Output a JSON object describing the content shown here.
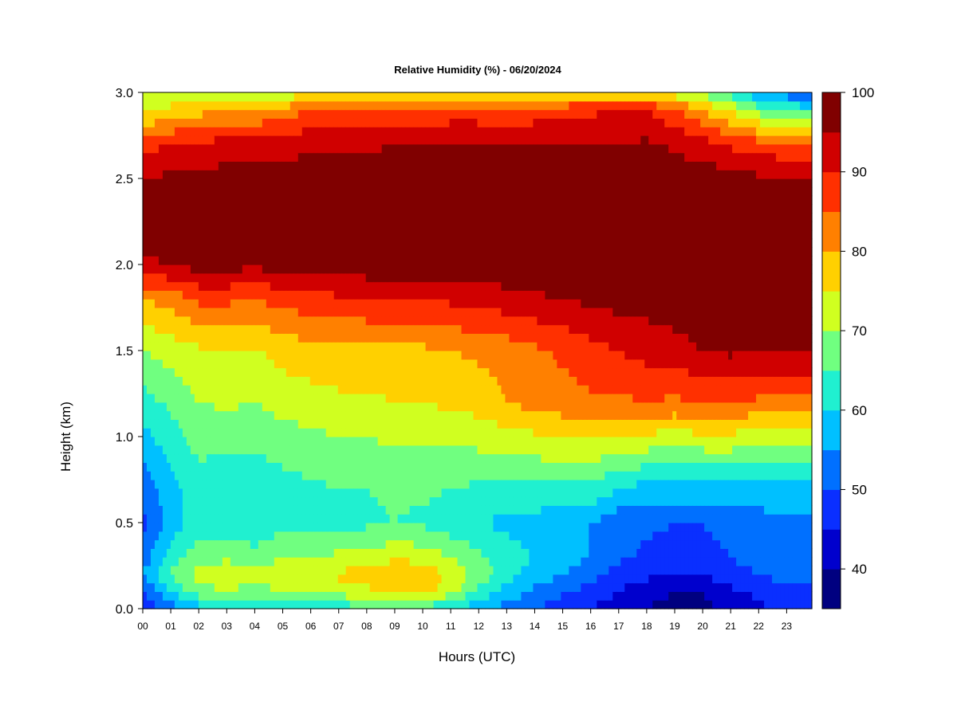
{
  "chart_data": {
    "type": "heatmap",
    "title": "Relative Humidity (%) - 06/20/2024",
    "xlabel": "Hours (UTC)",
    "ylabel": "Height (km)",
    "xlim": [
      0,
      23.9
    ],
    "ylim": [
      0,
      3.0
    ],
    "x_ticks": [
      0,
      1,
      2,
      3,
      4,
      5,
      6,
      7,
      8,
      9,
      10,
      11,
      12,
      13,
      14,
      15,
      16,
      17,
      18,
      19,
      20,
      21,
      22,
      23
    ],
    "x_tick_labels": [
      "00",
      "01",
      "02",
      "03",
      "04",
      "05",
      "06",
      "07",
      "08",
      "09",
      "10",
      "11",
      "12",
      "13",
      "14",
      "15",
      "16",
      "17",
      "18",
      "19",
      "20",
      "21",
      "22",
      "23"
    ],
    "y_ticks": [
      0,
      0.5,
      1.0,
      1.5,
      2.0,
      2.5,
      3.0
    ],
    "y_tick_labels": [
      "0.0",
      "0.5",
      "1.0",
      "1.5",
      "2.0",
      "2.5",
      "3.0"
    ],
    "colorbar": {
      "levels": [
        35,
        40,
        45,
        50,
        55,
        60,
        65,
        70,
        75,
        80,
        85,
        90,
        95,
        100
      ],
      "colors": [
        "#000080",
        "#0000CD",
        "#0A2FFF",
        "#0070FF",
        "#00C0FF",
        "#20F0D0",
        "#70FF80",
        "#D0FF20",
        "#FFD000",
        "#FF8000",
        "#FF3000",
        "#D00000",
        "#800000"
      ],
      "tick_values": [
        40,
        50,
        60,
        70,
        80,
        90,
        100
      ],
      "tick_labels": [
        "40",
        "50",
        "60",
        "70",
        "80",
        "90",
        "100"
      ],
      "placement": "right"
    },
    "grid": false,
    "profile_heights_km": [
      0.0,
      0.1,
      0.2,
      0.3,
      0.5,
      0.7,
      1.0,
      1.2,
      1.5,
      1.8,
      2.0,
      2.2,
      2.5,
      2.7,
      2.9,
      3.0
    ],
    "profiles": [
      {
        "hour": 0,
        "rh": [
          45,
          50,
          55,
          52,
          48,
          52,
          58,
          63,
          70,
          80,
          94,
          97,
          95,
          88,
          74,
          70
        ]
      },
      {
        "hour": 1,
        "rh": [
          52,
          60,
          66,
          62,
          57,
          58,
          63,
          66,
          72,
          82,
          95,
          98,
          96,
          90,
          76,
          72
        ]
      },
      {
        "hour": 2,
        "rh": [
          58,
          68,
          72,
          68,
          63,
          63,
          67,
          70,
          74,
          86,
          97,
          99,
          97,
          91,
          78,
          72
        ]
      },
      {
        "hour": 3,
        "rh": [
          60,
          70,
          74,
          69,
          62,
          62,
          66,
          71,
          75,
          86,
          97,
          99,
          97,
          92,
          80,
          70
        ]
      },
      {
        "hour": 4,
        "rh": [
          60,
          68,
          71,
          67,
          61,
          62,
          66,
          70,
          74,
          85,
          96,
          99,
          97,
          92,
          80,
          70
        ]
      },
      {
        "hour": 5,
        "rh": [
          60,
          70,
          74,
          70,
          63,
          63,
          68,
          72,
          77,
          87,
          97,
          99,
          97,
          93,
          82,
          71
        ]
      },
      {
        "hour": 6,
        "rh": [
          61,
          70,
          75,
          70,
          63,
          64,
          69,
          73,
          78,
          88,
          97,
          99,
          98,
          94,
          85,
          74
        ]
      },
      {
        "hour": 7,
        "rh": [
          62,
          72,
          76,
          71,
          64,
          65,
          70,
          74,
          78,
          89,
          98,
          99,
          98,
          94,
          86,
          76
        ]
      },
      {
        "hour": 8,
        "rh": [
          63,
          74,
          77,
          72,
          64,
          65,
          70,
          74,
          78,
          90,
          98,
          99,
          98,
          94,
          86,
          76
        ]
      },
      {
        "hour": 9,
        "rh": [
          64,
          78,
          80,
          74,
          65,
          66,
          71,
          75,
          79,
          90,
          98,
          99,
          98,
          95,
          87,
          76
        ]
      },
      {
        "hour": 10,
        "rh": [
          63,
          77,
          79,
          73,
          64,
          66,
          71,
          75,
          79,
          90,
          98,
          99,
          98,
          95,
          86,
          75
        ]
      },
      {
        "hour": 11,
        "rh": [
          60,
          72,
          74,
          70,
          62,
          65,
          71,
          76,
          80,
          91,
          98,
          99,
          98,
          95,
          87,
          76
        ]
      },
      {
        "hour": 12,
        "rh": [
          56,
          64,
          68,
          66,
          60,
          64,
          72,
          77,
          81,
          92,
          98,
          99,
          98,
          95,
          87,
          75
        ]
      },
      {
        "hour": 13,
        "rh": [
          53,
          58,
          62,
          62,
          59,
          64,
          73,
          80,
          82,
          93,
          99,
          99,
          98,
          95,
          86,
          74
        ]
      },
      {
        "hour": 14,
        "rh": [
          50,
          54,
          58,
          60,
          58,
          64,
          74,
          82,
          84,
          94,
          99,
          99,
          98,
          95,
          87,
          75
        ]
      },
      {
        "hour": 15,
        "rh": [
          47,
          51,
          55,
          57,
          56,
          64,
          75,
          83,
          86,
          95,
          99,
          99,
          98,
          95,
          88,
          75
        ]
      },
      {
        "hour": 16,
        "rh": [
          45,
          48,
          52,
          55,
          55,
          64,
          76,
          84,
          88,
          96,
          99,
          99,
          98,
          95,
          89,
          76
        ]
      },
      {
        "hour": 17,
        "rh": [
          42,
          45,
          48,
          51,
          52,
          60,
          74,
          84,
          90,
          97,
          99,
          99,
          98,
          95,
          90,
          76
        ]
      },
      {
        "hour": 18,
        "rh": [
          40,
          42,
          46,
          49,
          51,
          58,
          74,
          85,
          92,
          97,
          99,
          99,
          98,
          96,
          90,
          75
        ]
      },
      {
        "hour": 19,
        "rh": [
          38,
          40,
          44,
          48,
          50,
          58,
          73,
          84,
          93,
          98,
          99,
          99,
          98,
          94,
          86,
          72
        ]
      },
      {
        "hour": 20,
        "rh": [
          38,
          40,
          45,
          48,
          50,
          58,
          74,
          85,
          95,
          99,
          99,
          99,
          98,
          92,
          80,
          68
        ]
      },
      {
        "hour": 21,
        "rh": [
          42,
          44,
          48,
          50,
          52,
          58,
          74,
          85,
          96,
          99,
          99,
          99,
          97,
          89,
          74,
          62
        ]
      },
      {
        "hour": 22,
        "rh": [
          44,
          46,
          50,
          52,
          53,
          58,
          72,
          84,
          95,
          99,
          99,
          99,
          96,
          87,
          68,
          55
        ]
      },
      {
        "hour": 23,
        "rh": [
          46,
          48,
          52,
          54,
          54,
          58,
          72,
          84,
          95,
          99,
          99,
          99,
          96,
          86,
          64,
          52
        ]
      },
      {
        "hour": 23.9,
        "rh": [
          46,
          48,
          52,
          54,
          54,
          58,
          72,
          84,
          95,
          99,
          99,
          99,
          96,
          86,
          62,
          50
        ]
      }
    ]
  }
}
